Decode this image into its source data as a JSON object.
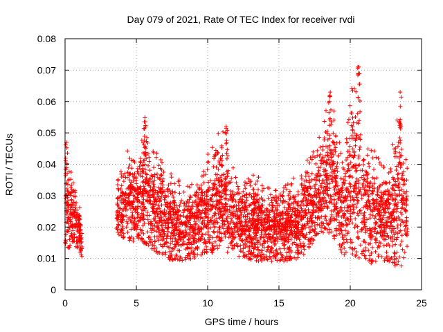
{
  "chart_data": {
    "type": "scatter",
    "title": "Day 079 of 2021, Rate Of TEC Index for receiver rvdi",
    "xlabel": "GPS time / hours",
    "ylabel": "ROTI / TECUs",
    "xlim": [
      0,
      25
    ],
    "ylim": [
      0,
      0.08
    ],
    "grid": true,
    "x_ticks": [
      0,
      5,
      10,
      15,
      20,
      25
    ],
    "x_tick_labels": [
      "0",
      "5",
      "10",
      "15",
      "20",
      "25"
    ],
    "y_ticks": [
      0,
      0.01,
      0.02,
      0.03,
      0.04,
      0.05,
      0.06,
      0.07,
      0.08
    ],
    "y_tick_labels": [
      "0",
      "0.01",
      "0.02",
      "0.03",
      "0.04",
      "0.05",
      "0.06",
      "0.07",
      "0.08"
    ],
    "marker": "+",
    "color": "#ff0000",
    "series": [
      {
        "name": "ROTI",
        "envelope_hours": [
          0.0,
          0.3,
          0.6,
          1.0,
          1.2,
          3.6,
          4.5,
          5.0,
          5.5,
          6.0,
          7.0,
          8.0,
          9.0,
          10.0,
          10.5,
          11.0,
          11.5,
          12.5,
          13.5,
          14.5,
          15.5,
          16.5,
          17.5,
          18.0,
          18.5,
          19.0,
          19.5,
          20.0,
          20.5,
          21.0,
          21.5,
          22.0,
          22.5,
          23.0,
          23.5,
          24.0
        ],
        "envelope_low": [
          0.015,
          0.012,
          0.015,
          0.012,
          0.01,
          0.018,
          0.015,
          0.015,
          0.015,
          0.013,
          0.01,
          0.009,
          0.01,
          0.012,
          0.011,
          0.015,
          0.011,
          0.01,
          0.009,
          0.009,
          0.009,
          0.01,
          0.015,
          0.018,
          0.018,
          0.015,
          0.01,
          0.012,
          0.01,
          0.01,
          0.008,
          0.009,
          0.009,
          0.008,
          0.007,
          0.01
        ],
        "envelope_high": [
          0.047,
          0.04,
          0.038,
          0.028,
          0.02,
          0.034,
          0.046,
          0.045,
          0.055,
          0.045,
          0.043,
          0.035,
          0.035,
          0.044,
          0.048,
          0.052,
          0.042,
          0.036,
          0.037,
          0.032,
          0.034,
          0.038,
          0.045,
          0.052,
          0.063,
          0.055,
          0.04,
          0.063,
          0.071,
          0.05,
          0.048,
          0.045,
          0.04,
          0.048,
          0.063,
          0.04
        ],
        "gap_hours": [
          1.2,
          3.6
        ],
        "peaks": [
          {
            "x": 0.1,
            "y": 0.047
          },
          {
            "x": 5.6,
            "y": 0.055
          },
          {
            "x": 11.3,
            "y": 0.052
          },
          {
            "x": 18.6,
            "y": 0.063
          },
          {
            "x": 20.6,
            "y": 0.071
          },
          {
            "x": 23.5,
            "y": 0.063
          }
        ]
      }
    ]
  }
}
